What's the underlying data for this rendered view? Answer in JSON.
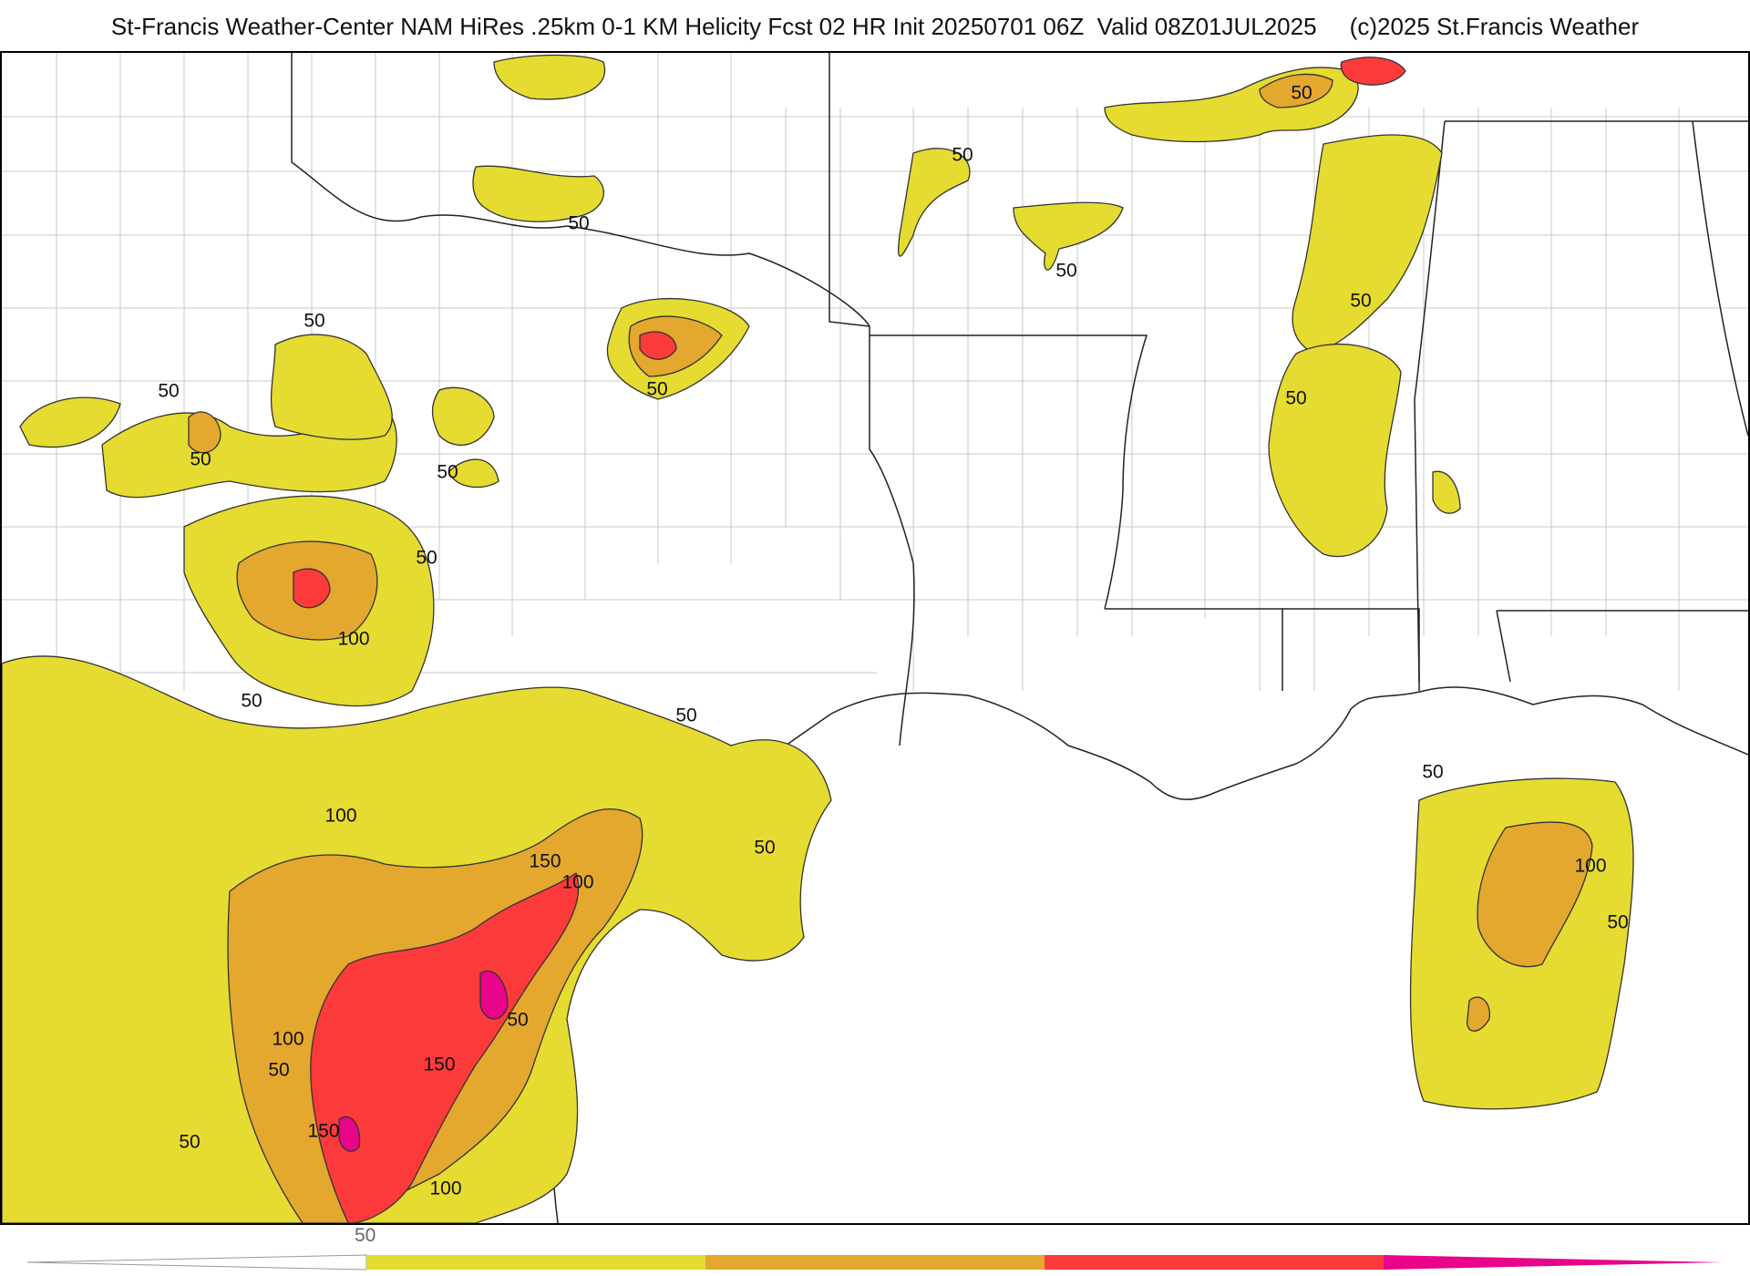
{
  "header": {
    "title": "St-Francis Weather-Center NAM HiRes .25km 0-1 KM Helicity Fcst 02 HR Init 20250701 06Z  Valid 08Z01JUL2025     (c)2025 St.Francis Weather"
  },
  "map": {
    "field": "0-1 KM Helicity",
    "contour_levels": [
      50,
      100,
      150,
      200
    ],
    "fill_colors": {
      "50": "#e6db30",
      "100": "#e4a82f",
      "150": "#fc3a3a",
      "200": "#e8058a"
    },
    "contour_labels": [
      {
        "text": "50"
      },
      {
        "text": "50"
      },
      {
        "text": "50"
      },
      {
        "text": "50"
      },
      {
        "text": "50"
      },
      {
        "text": "50"
      },
      {
        "text": "50"
      },
      {
        "text": "50"
      },
      {
        "text": "100"
      },
      {
        "text": "50"
      },
      {
        "text": "50"
      },
      {
        "text": "100"
      },
      {
        "text": "150"
      },
      {
        "text": "100"
      },
      {
        "text": "50"
      },
      {
        "text": "50"
      },
      {
        "text": "100"
      },
      {
        "text": "50"
      },
      {
        "text": "150"
      },
      {
        "text": "150"
      },
      {
        "text": "100"
      },
      {
        "text": "50"
      },
      {
        "text": "50"
      },
      {
        "text": "50"
      },
      {
        "text": "50"
      },
      {
        "text": "50"
      },
      {
        "text": "50"
      },
      {
        "text": "100"
      },
      {
        "text": "50"
      }
    ]
  },
  "colorbar": {
    "tick_label": "50",
    "segment_colors": [
      "#e6db30",
      "#e4a82f",
      "#fc3a3a",
      "#e8058a"
    ]
  }
}
